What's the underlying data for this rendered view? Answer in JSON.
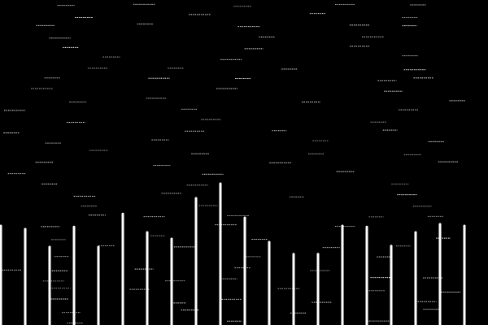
{
  "scene": {
    "background_color": "#000000",
    "foreground_color": "#ffffff",
    "bar_color": "#ffffff",
    "dash_color": "#ffffff"
  },
  "bars": [
    {
      "level": 0.305
    },
    {
      "level": 0.295
    },
    {
      "level": 0.24
    },
    {
      "level": 0.302
    },
    {
      "level": 0.24
    },
    {
      "level": 0.342
    },
    {
      "level": 0.285
    },
    {
      "level": 0.265
    },
    {
      "level": 0.39
    },
    {
      "level": 0.435
    },
    {
      "level": 0.33
    },
    {
      "level": 0.255
    },
    {
      "level": 0.218
    },
    {
      "level": 0.218
    },
    {
      "level": 0.305
    },
    {
      "level": 0.302
    },
    {
      "level": 0.243
    },
    {
      "level": 0.285
    },
    {
      "level": 0.31
    },
    {
      "level": 0.305
    }
  ]
}
